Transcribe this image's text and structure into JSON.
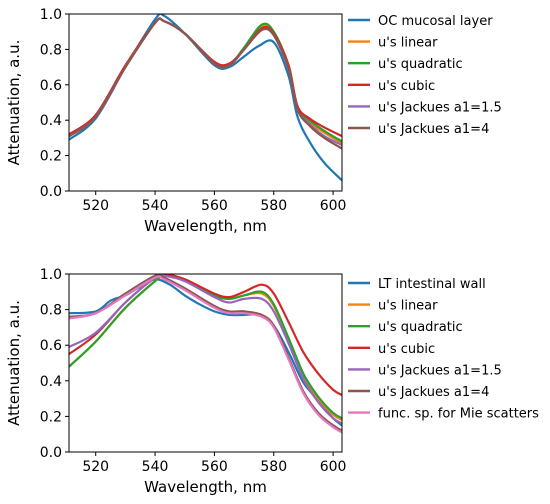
{
  "chart_data": [
    {
      "type": "line",
      "title": "",
      "xlabel": "Wavelength, nm",
      "ylabel": "Attenuation, a.u.",
      "xlim": [
        511,
        603
      ],
      "ylim": [
        0.0,
        1.0
      ],
      "xticks": [
        520,
        540,
        560,
        580,
        600
      ],
      "yticks": [
        0.0,
        0.2,
        0.4,
        0.6,
        0.8,
        1.0
      ],
      "grid": false,
      "legend_position": "outside-right",
      "series": [
        {
          "name": "OC mucosal layer",
          "color": "#1f77b4",
          "x": [
            511,
            520,
            530,
            540,
            543,
            550,
            560,
            565,
            570,
            575,
            580,
            585,
            588,
            592,
            597,
            603
          ],
          "y": [
            0.29,
            0.41,
            0.7,
            0.97,
            0.99,
            0.89,
            0.71,
            0.7,
            0.76,
            0.82,
            0.84,
            0.65,
            0.42,
            0.28,
            0.16,
            0.06
          ]
        },
        {
          "name": "u's linear",
          "color": "#ff7f0e",
          "x": [
            511,
            520,
            530,
            540,
            543,
            550,
            560,
            565,
            570,
            576,
            580,
            585,
            588,
            592,
            597,
            603
          ],
          "y": [
            0.31,
            0.42,
            0.7,
            0.95,
            0.96,
            0.89,
            0.72,
            0.71,
            0.8,
            0.93,
            0.89,
            0.7,
            0.47,
            0.39,
            0.33,
            0.27
          ]
        },
        {
          "name": "u's quadratic",
          "color": "#2ca02c",
          "x": [
            511,
            520,
            530,
            540,
            543,
            550,
            560,
            565,
            570,
            576,
            580,
            585,
            588,
            592,
            597,
            603
          ],
          "y": [
            0.31,
            0.42,
            0.7,
            0.95,
            0.96,
            0.89,
            0.72,
            0.71,
            0.81,
            0.94,
            0.9,
            0.71,
            0.47,
            0.4,
            0.34,
            0.28
          ]
        },
        {
          "name": "u's cubic",
          "color": "#d62728",
          "x": [
            511,
            520,
            530,
            540,
            543,
            550,
            560,
            565,
            570,
            576,
            580,
            585,
            588,
            592,
            597,
            603
          ],
          "y": [
            0.32,
            0.43,
            0.71,
            0.95,
            0.96,
            0.89,
            0.73,
            0.72,
            0.8,
            0.92,
            0.89,
            0.71,
            0.48,
            0.41,
            0.36,
            0.31
          ]
        },
        {
          "name": "u's Jackues a1=1.5",
          "color": "#9467bd",
          "x": [
            511,
            520,
            530,
            540,
            543,
            550,
            560,
            565,
            570,
            576,
            580,
            585,
            588,
            592,
            597,
            603
          ],
          "y": [
            0.31,
            0.42,
            0.7,
            0.95,
            0.96,
            0.89,
            0.72,
            0.71,
            0.8,
            0.91,
            0.88,
            0.69,
            0.46,
            0.38,
            0.31,
            0.26
          ]
        },
        {
          "name": "u's Jackues a1=4",
          "color": "#8c564b",
          "x": [
            511,
            520,
            530,
            540,
            543,
            550,
            560,
            565,
            570,
            576,
            580,
            585,
            588,
            592,
            597,
            603
          ],
          "y": [
            0.31,
            0.42,
            0.7,
            0.95,
            0.96,
            0.89,
            0.72,
            0.71,
            0.8,
            0.91,
            0.88,
            0.69,
            0.46,
            0.37,
            0.3,
            0.24
          ]
        }
      ]
    },
    {
      "type": "line",
      "title": "",
      "xlabel": "Wavelength, nm",
      "ylabel": "Attenuation, a.u.",
      "xlim": [
        511,
        603
      ],
      "ylim": [
        0.0,
        1.0
      ],
      "xticks": [
        520,
        540,
        560,
        580,
        600
      ],
      "yticks": [
        0.0,
        0.2,
        0.4,
        0.6,
        0.8,
        1.0
      ],
      "grid": false,
      "legend_position": "outside-right",
      "series": [
        {
          "name": "LT intestinal wall",
          "color": "#1f77b4",
          "x": [
            511,
            520,
            525,
            530,
            535,
            540,
            545,
            550,
            555,
            560,
            565,
            570,
            575,
            580,
            585,
            590,
            595,
            600,
            603
          ],
          "y": [
            0.78,
            0.79,
            0.85,
            0.88,
            0.93,
            0.97,
            0.94,
            0.88,
            0.83,
            0.79,
            0.77,
            0.77,
            0.77,
            0.71,
            0.56,
            0.39,
            0.29,
            0.19,
            0.15
          ]
        },
        {
          "name": "u's linear",
          "color": "#ff7f0e",
          "x": [
            511,
            520,
            530,
            540,
            543,
            550,
            560,
            565,
            570,
            576,
            580,
            585,
            590,
            595,
            600,
            603
          ],
          "y": [
            0.48,
            0.62,
            0.81,
            0.96,
            0.99,
            0.97,
            0.88,
            0.86,
            0.88,
            0.89,
            0.82,
            0.63,
            0.43,
            0.3,
            0.21,
            0.18
          ]
        },
        {
          "name": "u's quadratic",
          "color": "#2ca02c",
          "x": [
            511,
            520,
            530,
            540,
            543,
            550,
            560,
            565,
            570,
            576,
            580,
            585,
            590,
            595,
            600,
            603
          ],
          "y": [
            0.48,
            0.62,
            0.81,
            0.96,
            0.99,
            0.97,
            0.88,
            0.86,
            0.88,
            0.9,
            0.83,
            0.64,
            0.44,
            0.31,
            0.22,
            0.19
          ]
        },
        {
          "name": "u's cubic",
          "color": "#d62728",
          "x": [
            511,
            520,
            530,
            540,
            543,
            550,
            560,
            565,
            570,
            576,
            580,
            585,
            590,
            595,
            600,
            603
          ],
          "y": [
            0.55,
            0.66,
            0.84,
            0.98,
            1.0,
            0.97,
            0.89,
            0.87,
            0.9,
            0.94,
            0.89,
            0.73,
            0.56,
            0.44,
            0.35,
            0.32
          ]
        },
        {
          "name": "u's Jackues a1=1.5",
          "color": "#9467bd",
          "x": [
            511,
            520,
            530,
            540,
            543,
            550,
            560,
            565,
            570,
            576,
            580,
            585,
            590,
            595,
            600,
            603
          ],
          "y": [
            0.59,
            0.67,
            0.84,
            0.98,
            0.99,
            0.96,
            0.87,
            0.84,
            0.86,
            0.86,
            0.79,
            0.61,
            0.41,
            0.28,
            0.19,
            0.16
          ]
        },
        {
          "name": "u's Jackues a1=4",
          "color": "#8c564b",
          "x": [
            511,
            520,
            530,
            540,
            543,
            550,
            560,
            565,
            570,
            576,
            580,
            585,
            590,
            595,
            600,
            603
          ],
          "y": [
            0.76,
            0.78,
            0.89,
            0.99,
            0.98,
            0.92,
            0.82,
            0.79,
            0.79,
            0.77,
            0.71,
            0.53,
            0.34,
            0.22,
            0.15,
            0.12
          ]
        },
        {
          "name": "func. sp. for Mie scatters",
          "color": "#e377c2",
          "x": [
            511,
            520,
            530,
            540,
            543,
            550,
            560,
            565,
            570,
            576,
            580,
            585,
            590,
            595,
            600,
            603
          ],
          "y": [
            0.75,
            0.78,
            0.88,
            0.98,
            0.97,
            0.91,
            0.81,
            0.78,
            0.78,
            0.76,
            0.7,
            0.52,
            0.33,
            0.21,
            0.14,
            0.11
          ]
        }
      ]
    }
  ]
}
